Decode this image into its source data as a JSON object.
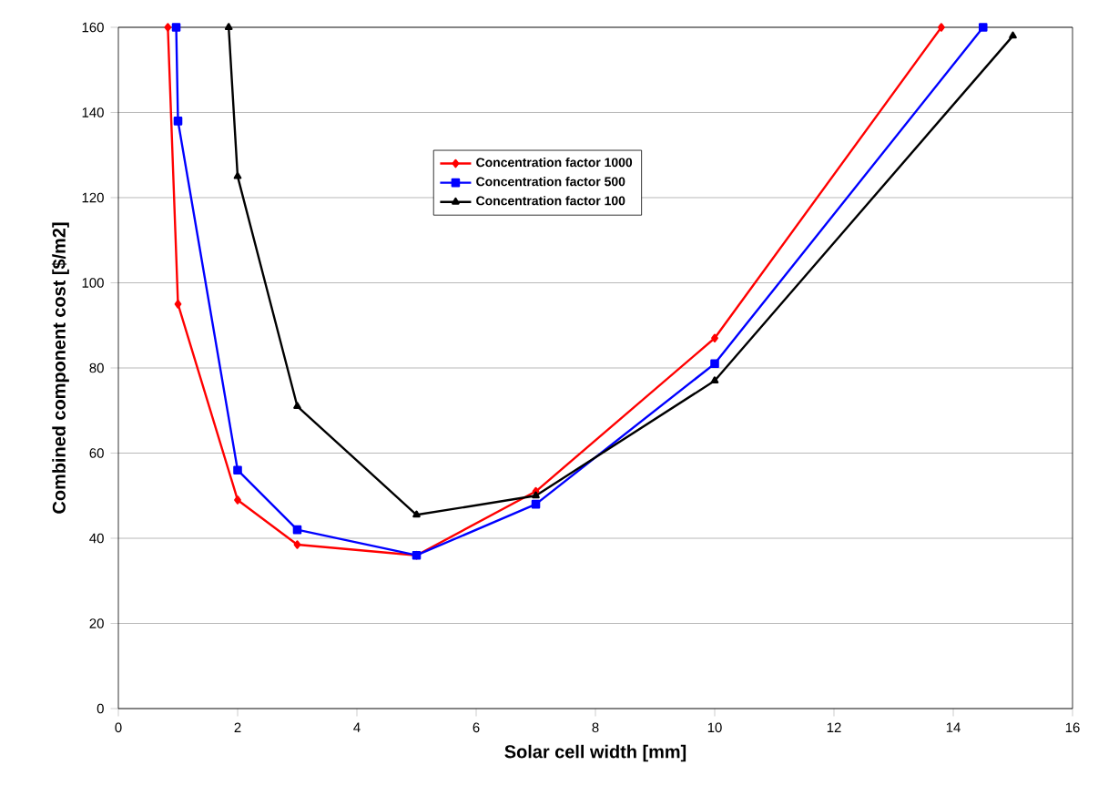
{
  "chart_data": {
    "type": "line",
    "xlabel": "Solar cell width [mm]",
    "ylabel": "Combined component cost [$/m2]",
    "xlim": [
      0,
      16
    ],
    "ylim": [
      0,
      160
    ],
    "xticks": [
      0,
      2,
      4,
      6,
      8,
      10,
      12,
      14,
      16
    ],
    "yticks": [
      0,
      20,
      40,
      60,
      80,
      100,
      120,
      140,
      160
    ],
    "grid": "y",
    "legend": "top",
    "series": [
      {
        "name": "Concentration factor 1000",
        "color": "#ff0000",
        "marker": "diamond",
        "x": [
          0.83,
          1,
          2,
          3,
          5,
          7,
          10,
          13.8
        ],
        "values": [
          160,
          95,
          49,
          38.5,
          36,
          51,
          87,
          160
        ]
      },
      {
        "name": "Concentration factor 500",
        "color": "#0000ff",
        "marker": "square",
        "x": [
          0.97,
          1,
          2,
          3,
          5,
          7,
          10,
          14.5
        ],
        "values": [
          160,
          138,
          56,
          42,
          36,
          48,
          81,
          160
        ]
      },
      {
        "name": "Concentration factor 100",
        "color": "#000000",
        "marker": "triangle",
        "x": [
          1.85,
          2,
          3,
          5,
          7,
          10,
          15
        ],
        "values": [
          160,
          125,
          71,
          45.5,
          50,
          77,
          158
        ]
      }
    ]
  }
}
